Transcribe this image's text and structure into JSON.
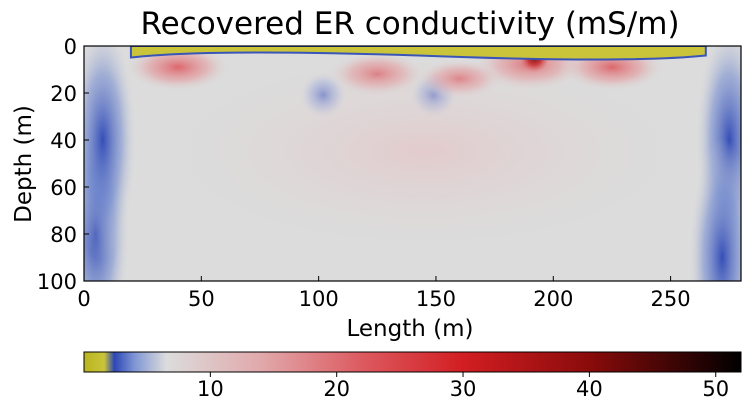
{
  "chart_data": {
    "type": "heatmap",
    "title": "Recovered ER conductivity (mS/m)",
    "xlabel": "Length (m)",
    "ylabel": "Depth (m)",
    "xlim": [
      0,
      280
    ],
    "ylim": [
      100,
      0
    ],
    "y_inverted": true,
    "xticks": [
      0,
      50,
      100,
      150,
      200,
      250
    ],
    "yticks": [
      0,
      20,
      40,
      60,
      80,
      100
    ],
    "colorbar": {
      "orientation": "horizontal",
      "placement": "bottom",
      "range": [
        0,
        52
      ],
      "ticks": [
        10,
        20,
        30,
        40,
        50
      ],
      "colormap": [
        {
          "value": 0,
          "color": "#b8b520"
        },
        {
          "value": 1.6,
          "color": "#c9c43a"
        },
        {
          "value": 2.4,
          "color": "#2d47b5"
        },
        {
          "value": 4.0,
          "color": "#7f96d4"
        },
        {
          "value": 6.5,
          "color": "#dcdcdc"
        },
        {
          "value": 14,
          "color": "#e1a9ab"
        },
        {
          "value": 22,
          "color": "#dc5a60"
        },
        {
          "value": 30,
          "color": "#d21e22"
        },
        {
          "value": 40,
          "color": "#8a0b0b"
        },
        {
          "value": 52,
          "color": "#000000"
        }
      ]
    },
    "background_value": 7,
    "features": [
      {
        "kind": "resistive_edge",
        "x": 5,
        "depth": 80,
        "value": 2.6
      },
      {
        "kind": "resistive_edge",
        "x": 8,
        "depth": 40,
        "value": 3.0
      },
      {
        "kind": "resistive_edge",
        "x": 275,
        "depth": 40,
        "value": 3.2
      },
      {
        "kind": "resistive_edge",
        "x": 272,
        "depth": 90,
        "value": 4.5
      },
      {
        "kind": "resistive_blob",
        "x": 102,
        "depth": 21,
        "value": 3.6
      },
      {
        "kind": "resistive_blob",
        "x": 149,
        "depth": 21,
        "value": 3.4
      },
      {
        "kind": "conductive_blob",
        "x": 40,
        "depth": 9,
        "value": 20
      },
      {
        "kind": "conductive_blob",
        "x": 125,
        "depth": 12,
        "value": 17
      },
      {
        "kind": "conductive_blob",
        "x": 190,
        "depth": 8,
        "value": 27
      },
      {
        "kind": "conductive_blob",
        "x": 192,
        "depth": 5,
        "value": 45
      },
      {
        "kind": "conductive_blob",
        "x": 225,
        "depth": 9,
        "value": 20
      },
      {
        "kind": "conductive_blob",
        "x": 160,
        "depth": 14,
        "value": 12
      },
      {
        "kind": "conductive_bowl",
        "x": 145,
        "depth": 45,
        "value": 9
      },
      {
        "kind": "surface_layer",
        "x_start": 20,
        "x_end": 265,
        "depth": 1.5,
        "value": 0.5
      }
    ]
  }
}
